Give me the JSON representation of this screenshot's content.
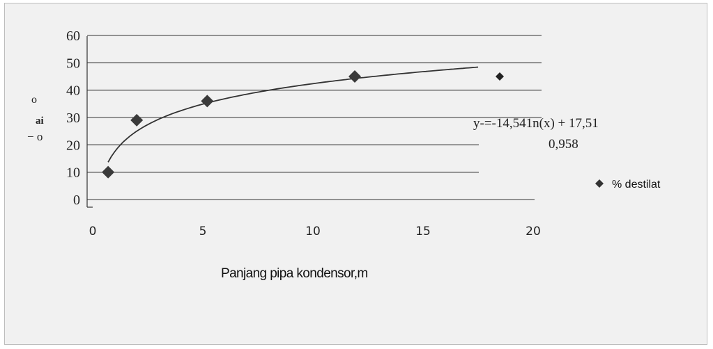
{
  "colors": {
    "background": "#f1f1f1",
    "gridline": "#333333",
    "marker": "#333333",
    "trendline": "#333333"
  },
  "chart_data": {
    "type": "scatter",
    "title": "",
    "xlabel": "Panjang pipa kondensor,m",
    "ylabel_fragments": [
      "o",
      "ai",
      "− o"
    ],
    "xlim": [
      0,
      20
    ],
    "ylim": [
      0,
      60
    ],
    "x_ticks": [
      "0",
      "5",
      "10",
      "15",
      "20"
    ],
    "y_ticks": [
      "0",
      "10",
      "20",
      "30",
      "40",
      "50",
      "60"
    ],
    "grid": true,
    "legend_position": "right",
    "series": [
      {
        "name": "% destilat",
        "marker": "diamond",
        "x": [
          0.7,
          2.0,
          5.2,
          11.9
        ],
        "y": [
          10,
          29,
          36,
          45
        ]
      }
    ],
    "trendline": {
      "type": "logarithmic",
      "equation": "y-=-14,541n(x) + 17,51",
      "r2_label": "0,958",
      "x_range": [
        0.7,
        17.5
      ]
    }
  }
}
